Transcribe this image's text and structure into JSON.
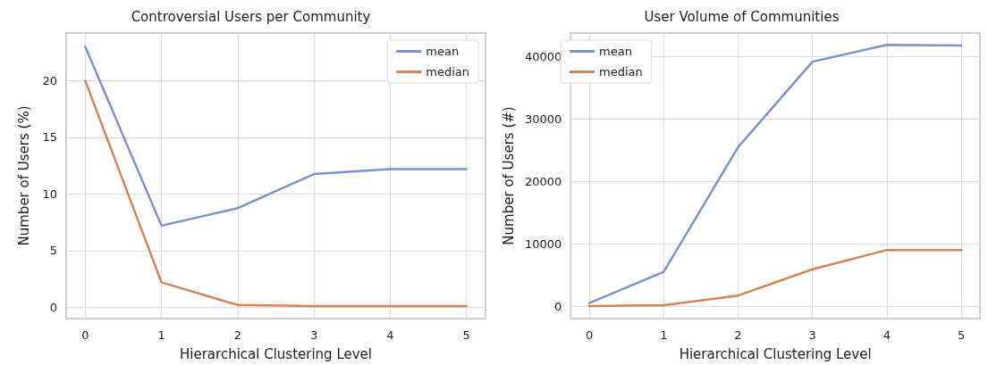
{
  "chart_data": [
    {
      "type": "line",
      "title": "Controversial Users per Community",
      "xlabel": "Hierarchical Clustering Level",
      "ylabel": "Number of Users (%)",
      "x": [
        0,
        1,
        2,
        3,
        4,
        5
      ],
      "xlim": [
        -0.25,
        5.25
      ],
      "xticks": [
        0,
        1,
        2,
        3,
        4,
        5
      ],
      "ylim": [
        -1,
        24.2
      ],
      "yticks": [
        0,
        5,
        10,
        15,
        20
      ],
      "grid": true,
      "legend": "top right",
      "marker": "none",
      "line_style": "solid",
      "series": [
        {
          "name": "mean",
          "color": "#7b93c8",
          "values": [
            23,
            7.2,
            8.75,
            11.75,
            12.2,
            12.2
          ]
        },
        {
          "name": "median",
          "color": "#d5845a",
          "values": [
            20,
            2.2,
            0.2,
            0.1,
            0.1,
            0.1
          ]
        }
      ]
    },
    {
      "type": "line",
      "title": "User Volume of Communities",
      "xlabel": "Hierarchical Clustering Level",
      "ylabel": "Number of Users (#)",
      "x": [
        0,
        1,
        2,
        3,
        4,
        5
      ],
      "xlim": [
        -0.25,
        5.25
      ],
      "xticks": [
        0,
        1,
        2,
        3,
        4,
        5
      ],
      "ylim": [
        -2000,
        43800
      ],
      "yticks": [
        0,
        10000,
        20000,
        30000,
        40000
      ],
      "grid": true,
      "legend": "top left",
      "marker": "none",
      "line_style": "solid",
      "series": [
        {
          "name": "mean",
          "color": "#7b93c8",
          "values": [
            500,
            5500,
            25500,
            39200,
            41900,
            41800
          ]
        },
        {
          "name": "median",
          "color": "#d5845a",
          "values": [
            0,
            150,
            1700,
            5900,
            9000,
            9000
          ]
        }
      ]
    }
  ]
}
